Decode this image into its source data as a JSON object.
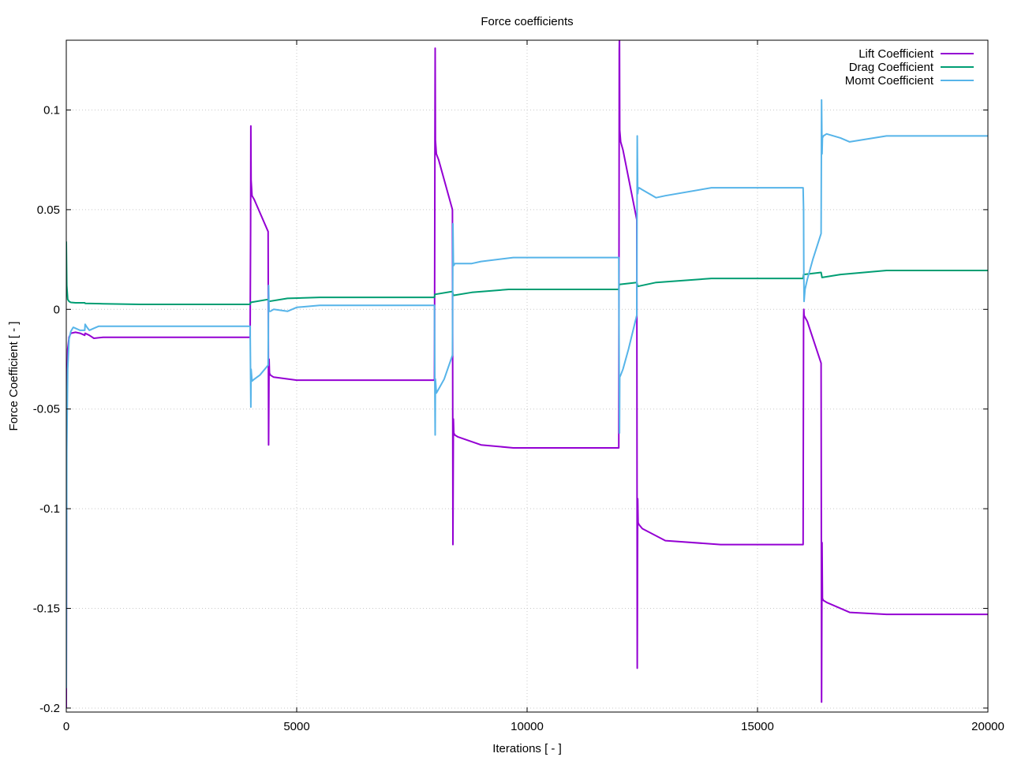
{
  "chart_data": {
    "type": "line",
    "title": "Force coefficients",
    "xlabel": "Iterations [ - ]",
    "ylabel": "Force Coefficient [ - ]",
    "xlim": [
      0,
      20000
    ],
    "ylim": [
      -0.202,
      0.135
    ],
    "xticks": [
      0,
      5000,
      10000,
      15000,
      20000
    ],
    "xtick_labels": [
      "0",
      "5000",
      "10000",
      "15000",
      "20000"
    ],
    "yticks": [
      -0.2,
      -0.15,
      -0.1,
      -0.05,
      0,
      0.05,
      0.1
    ],
    "ytick_labels": [
      "-0.2",
      "-0.15",
      "-0.1",
      "-0.05",
      "0",
      "0.05",
      "0.1"
    ],
    "grid": true,
    "legend": "top-right",
    "series": [
      {
        "name": "Lift Coefficient",
        "color": "#9400d3",
        "x": [
          0,
          10,
          30,
          60,
          100,
          200,
          300,
          400,
          410,
          500,
          600,
          800,
          1600,
          3990,
          4000,
          4005,
          4010,
          4030,
          4080,
          4380,
          4390,
          4400,
          4410,
          4430,
          4500,
          5000,
          5500,
          7990,
          8000,
          8005,
          8010,
          8030,
          8080,
          8380,
          8390,
          8400,
          8410,
          8430,
          8500,
          9000,
          9700,
          11990,
          12000,
          12005,
          12010,
          12030,
          12080,
          12380,
          12390,
          12400,
          12410,
          12430,
          12500,
          13000,
          14200,
          15990,
          16000,
          16005,
          16010,
          16030,
          16080,
          16380,
          16390,
          16400,
          16410,
          16430,
          16500,
          17000,
          17800,
          20000
        ],
        "y": [
          -0.2,
          -0.05,
          -0.02,
          -0.014,
          -0.012,
          -0.0115,
          -0.012,
          -0.013,
          -0.012,
          -0.013,
          -0.0145,
          -0.014,
          -0.014,
          -0.014,
          0.04,
          0.092,
          0.065,
          0.057,
          0.055,
          0.039,
          -0.068,
          -0.025,
          -0.032,
          -0.033,
          -0.034,
          -0.0355,
          -0.0355,
          -0.0355,
          0.085,
          0.131,
          0.085,
          0.078,
          0.075,
          0.05,
          -0.118,
          -0.055,
          -0.062,
          -0.063,
          -0.064,
          -0.068,
          -0.0695,
          -0.0695,
          0.13,
          0.138,
          0.09,
          0.084,
          0.08,
          0.045,
          -0.18,
          -0.095,
          -0.107,
          -0.108,
          -0.11,
          -0.116,
          -0.118,
          -0.118,
          -0.005,
          0.0,
          -0.003,
          -0.004,
          -0.006,
          -0.027,
          -0.197,
          -0.117,
          -0.145,
          -0.146,
          -0.147,
          -0.152,
          -0.153,
          -0.153
        ]
      },
      {
        "name": "Drag Coefficient",
        "color": "#009e73",
        "x": [
          0,
          10,
          30,
          60,
          100,
          200,
          400,
          410,
          800,
          1600,
          3990,
          4000,
          4380,
          4400,
          4800,
          5500,
          7990,
          8000,
          8380,
          8400,
          8800,
          9600,
          11990,
          12000,
          12380,
          12400,
          12800,
          14000,
          15990,
          16000,
          16380,
          16400,
          16800,
          17800,
          20000
        ],
        "y": [
          0.034,
          0.012,
          0.005,
          0.004,
          0.0035,
          0.0033,
          0.0033,
          0.003,
          0.0028,
          0.0025,
          0.0025,
          0.0035,
          0.005,
          0.004,
          0.0055,
          0.006,
          0.006,
          0.0075,
          0.009,
          0.007,
          0.0085,
          0.01,
          0.01,
          0.0125,
          0.0135,
          0.0115,
          0.0135,
          0.0155,
          0.0155,
          0.0175,
          0.0185,
          0.016,
          0.0175,
          0.0195,
          0.0195
        ]
      },
      {
        "name": "Momt Coefficient",
        "color": "#56b4e9",
        "x": [
          0,
          10,
          30,
          60,
          100,
          150,
          200,
          250,
          300,
          400,
          410,
          450,
          500,
          600,
          700,
          800,
          1600,
          3990,
          4000,
          4005,
          4010,
          4030,
          4080,
          4200,
          4380,
          4390,
          4400,
          4410,
          4430,
          4500,
          4800,
          5000,
          5500,
          7990,
          8000,
          8005,
          8010,
          8030,
          8080,
          8200,
          8380,
          8390,
          8400,
          8410,
          8430,
          8500,
          8800,
          9000,
          9700,
          11990,
          12000,
          12005,
          12010,
          12030,
          12080,
          12200,
          12380,
          12390,
          12400,
          12410,
          12430,
          12500,
          12800,
          13000,
          14000,
          15990,
          16000,
          16005,
          16010,
          16030,
          16080,
          16200,
          16380,
          16390,
          16400,
          16410,
          16430,
          16500,
          16800,
          17000,
          17800,
          20000
        ],
        "y": [
          -0.19,
          -0.07,
          -0.03,
          -0.015,
          -0.011,
          -0.009,
          -0.0095,
          -0.01,
          -0.0105,
          -0.0105,
          -0.0075,
          -0.009,
          -0.0105,
          -0.0095,
          -0.0085,
          -0.0085,
          -0.0085,
          -0.0085,
          -0.035,
          -0.049,
          -0.03,
          -0.036,
          -0.035,
          -0.033,
          -0.028,
          0.012,
          -0.001,
          -0.001,
          -0.001,
          0.0,
          -0.001,
          0.001,
          0.002,
          0.002,
          -0.045,
          -0.063,
          -0.035,
          -0.042,
          -0.04,
          -0.035,
          -0.023,
          0.043,
          0.022,
          0.022,
          0.023,
          0.023,
          0.023,
          0.024,
          0.026,
          0.026,
          -0.04,
          -0.062,
          -0.034,
          -0.033,
          -0.03,
          -0.02,
          -0.003,
          0.087,
          0.058,
          0.06,
          0.061,
          0.06,
          0.056,
          0.057,
          0.061,
          0.061,
          0.05,
          0.018,
          0.004,
          0.01,
          0.015,
          0.025,
          0.038,
          0.105,
          0.078,
          0.086,
          0.087,
          0.088,
          0.086,
          0.084,
          0.087,
          0.087
        ]
      }
    ]
  }
}
